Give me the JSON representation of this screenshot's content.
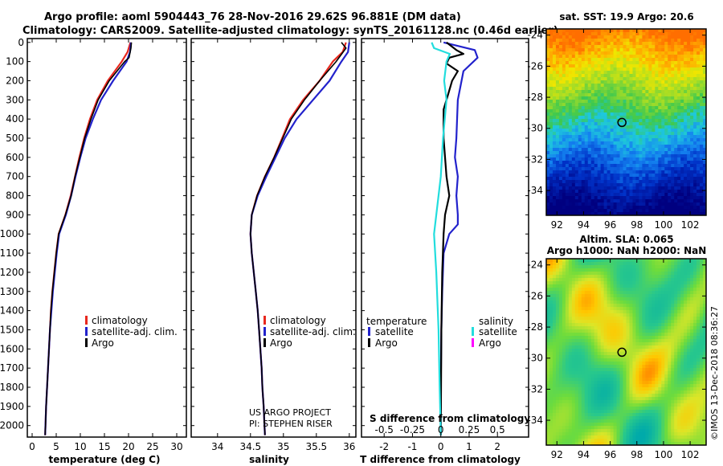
{
  "header": {
    "line1": "Argo profile: aoml 5904443_76 28-Nov-2016 29.62S 96.881E (DM data)",
    "line2": "Climatology: CARS2009. Satellite-adjusted climatology: synTS_20161128.nc (0.46d earlier)"
  },
  "colors": {
    "climatology": "#e8281e",
    "satellite": "#2222cc",
    "argo": "#000000",
    "sat_sal": "#22dddd",
    "argo_sal": "#ff00ff"
  },
  "depth_ticks": [
    0,
    100,
    200,
    300,
    400,
    500,
    600,
    700,
    800,
    900,
    1000,
    1100,
    1200,
    1300,
    1400,
    1500,
    1600,
    1700,
    1800,
    1900,
    2000
  ],
  "chart_data": [
    {
      "type": "line",
      "xlabel": "temperature (deg C)",
      "xlim": [
        -1,
        32
      ],
      "ylim": [
        2060,
        -20
      ],
      "xticks": [
        0,
        5,
        10,
        15,
        20,
        25,
        30
      ],
      "legend": [
        "climatology",
        "satellite-adj. clim.",
        "Argo"
      ],
      "series": [
        {
          "name": "climatology",
          "points": [
            [
              20.4,
              0
            ],
            [
              19.8,
              50
            ],
            [
              18.6,
              100
            ],
            [
              15.7,
              200
            ],
            [
              13.5,
              300
            ],
            [
              12.0,
              400
            ],
            [
              10.8,
              500
            ],
            [
              9.8,
              600
            ],
            [
              8.9,
              700
            ],
            [
              8.0,
              800
            ],
            [
              6.9,
              900
            ],
            [
              5.5,
              1000
            ],
            [
              5.0,
              1100
            ],
            [
              4.6,
              1200
            ],
            [
              4.2,
              1300
            ],
            [
              3.9,
              1400
            ],
            [
              3.7,
              1500
            ],
            [
              3.5,
              1600
            ],
            [
              3.3,
              1700
            ],
            [
              3.1,
              1800
            ],
            [
              2.9,
              1900
            ],
            [
              2.7,
              2050
            ]
          ]
        },
        {
          "name": "satellite-adj. clim.",
          "points": [
            [
              20.5,
              0
            ],
            [
              20.3,
              50
            ],
            [
              19.6,
              100
            ],
            [
              16.8,
              200
            ],
            [
              14.3,
              300
            ],
            [
              12.6,
              400
            ],
            [
              11.1,
              500
            ],
            [
              10.0,
              600
            ],
            [
              9.0,
              700
            ],
            [
              8.1,
              800
            ],
            [
              7.0,
              900
            ],
            [
              5.6,
              1000
            ],
            [
              5.1,
              1100
            ],
            [
              4.7,
              1200
            ],
            [
              4.3,
              1300
            ],
            [
              4.0,
              1400
            ],
            [
              3.7,
              1500
            ],
            [
              3.5,
              1600
            ],
            [
              3.3,
              1700
            ],
            [
              3.1,
              1800
            ],
            [
              2.9,
              1900
            ],
            [
              2.7,
              2050
            ]
          ]
        },
        {
          "name": "Argo",
          "points": [
            [
              20.6,
              0
            ],
            [
              20.5,
              30
            ],
            [
              20.1,
              80
            ],
            [
              19.2,
              100
            ],
            [
              16.0,
              200
            ],
            [
              13.7,
              300
            ],
            [
              12.2,
              400
            ],
            [
              10.9,
              500
            ],
            [
              9.9,
              600
            ],
            [
              8.9,
              700
            ],
            [
              8.1,
              800
            ],
            [
              6.9,
              900
            ],
            [
              5.5,
              1000
            ],
            [
              5.0,
              1100
            ],
            [
              4.6,
              1200
            ],
            [
              4.2,
              1300
            ],
            [
              3.9,
              1400
            ],
            [
              3.7,
              1500
            ],
            [
              3.5,
              1600
            ],
            [
              3.3,
              1700
            ],
            [
              3.1,
              1800
            ],
            [
              2.9,
              1900
            ],
            [
              2.7,
              2050
            ]
          ]
        }
      ]
    },
    {
      "type": "line",
      "xlabel": "salinity",
      "xlim": [
        33.6,
        36.1
      ],
      "ylim": [
        2060,
        -20
      ],
      "xticks": [
        34,
        34.5,
        35,
        35.5,
        36
      ],
      "legend": [
        "climatology",
        "satellite-adj. clim.",
        "Argo"
      ],
      "series": [
        {
          "name": "climatology",
          "points": [
            [
              35.95,
              0
            ],
            [
              35.9,
              50
            ],
            [
              35.75,
              100
            ],
            [
              35.55,
              200
            ],
            [
              35.3,
              300
            ],
            [
              35.1,
              400
            ],
            [
              34.98,
              500
            ],
            [
              34.86,
              600
            ],
            [
              34.72,
              700
            ],
            [
              34.6,
              800
            ],
            [
              34.52,
              900
            ],
            [
              34.5,
              1000
            ],
            [
              34.52,
              1100
            ],
            [
              34.55,
              1200
            ],
            [
              34.58,
              1300
            ],
            [
              34.61,
              1400
            ],
            [
              34.63,
              1500
            ],
            [
              34.65,
              1600
            ],
            [
              34.67,
              1700
            ],
            [
              34.68,
              1800
            ],
            [
              34.7,
              1900
            ],
            [
              34.72,
              2050
            ]
          ]
        },
        {
          "name": "satellite-adj. clim.",
          "points": [
            [
              36.0,
              0
            ],
            [
              35.98,
              50
            ],
            [
              35.88,
              100
            ],
            [
              35.7,
              200
            ],
            [
              35.45,
              300
            ],
            [
              35.2,
              400
            ],
            [
              35.02,
              500
            ],
            [
              34.88,
              600
            ],
            [
              34.74,
              700
            ],
            [
              34.61,
              800
            ],
            [
              34.52,
              900
            ],
            [
              34.5,
              1000
            ],
            [
              34.52,
              1100
            ],
            [
              34.55,
              1200
            ],
            [
              34.58,
              1300
            ],
            [
              34.61,
              1400
            ],
            [
              34.63,
              1500
            ],
            [
              34.65,
              1600
            ],
            [
              34.67,
              1700
            ],
            [
              34.68,
              1800
            ],
            [
              34.7,
              1900
            ],
            [
              34.72,
              2050
            ]
          ]
        },
        {
          "name": "Argo",
          "points": [
            [
              35.88,
              0
            ],
            [
              35.95,
              30
            ],
            [
              35.8,
              100
            ],
            [
              35.55,
              200
            ],
            [
              35.32,
              300
            ],
            [
              35.12,
              400
            ],
            [
              34.99,
              500
            ],
            [
              34.86,
              600
            ],
            [
              34.72,
              700
            ],
            [
              34.6,
              800
            ],
            [
              34.52,
              900
            ],
            [
              34.5,
              1000
            ],
            [
              34.52,
              1100
            ],
            [
              34.55,
              1200
            ],
            [
              34.58,
              1300
            ],
            [
              34.61,
              1400
            ],
            [
              34.63,
              1500
            ],
            [
              34.65,
              1600
            ],
            [
              34.67,
              1700
            ],
            [
              34.68,
              1800
            ],
            [
              34.7,
              1900
            ],
            [
              34.72,
              2050
            ]
          ]
        }
      ],
      "annotation": [
        "US ARGO PROJECT",
        "PI: STEPHEN RISER"
      ]
    },
    {
      "type": "line",
      "xlabel": "T difference from climatology",
      "xlabel2": "S difference from climatology",
      "xlim": [
        -2.8,
        3.1
      ],
      "ylim": [
        2060,
        -20
      ],
      "xticks": [
        -2,
        -1,
        0,
        1,
        2
      ],
      "xticks2": [
        {
          "v": -0.5,
          "l": "-0.5"
        },
        {
          "v": -0.25,
          "l": "-0.25"
        },
        {
          "v": 0,
          "l": "0"
        },
        {
          "v": 0.25,
          "l": "0.25"
        },
        {
          "v": 0.5,
          "l": "0.5"
        }
      ],
      "s_scale": 4,
      "legend_t_title": "temperature",
      "legend_s_title": "salinity",
      "legend_t": [
        "satellite",
        "Argo"
      ],
      "legend_s": [
        "satellite",
        "Argo"
      ],
      "series": [
        {
          "name": "T satellite",
          "points": [
            [
              0.1,
              0
            ],
            [
              1.2,
              40
            ],
            [
              1.3,
              80
            ],
            [
              0.8,
              150
            ],
            [
              0.6,
              300
            ],
            [
              0.55,
              500
            ],
            [
              0.5,
              600
            ],
            [
              0.6,
              700
            ],
            [
              0.55,
              800
            ],
            [
              0.6,
              900
            ],
            [
              0.6,
              950
            ],
            [
              0.3,
              1000
            ],
            [
              0.1,
              1100
            ],
            [
              0.05,
              1300
            ],
            [
              0.02,
              1500
            ],
            [
              0.0,
              1800
            ],
            [
              0.0,
              2050
            ]
          ]
        },
        {
          "name": "T Argo",
          "points": [
            [
              0.2,
              0
            ],
            [
              0.55,
              40
            ],
            [
              0.8,
              60
            ],
            [
              0.3,
              80
            ],
            [
              0.2,
              110
            ],
            [
              0.6,
              150
            ],
            [
              0.4,
              200
            ],
            [
              0.3,
              250
            ],
            [
              0.2,
              300
            ],
            [
              0.1,
              350
            ],
            [
              0.1,
              500
            ],
            [
              0.2,
              700
            ],
            [
              0.3,
              800
            ],
            [
              0.15,
              900
            ],
            [
              0.1,
              1000
            ],
            [
              0.05,
              1200
            ],
            [
              0.02,
              1500
            ],
            [
              0.0,
              2050
            ]
          ]
        },
        {
          "name": "S satellite",
          "points": [
            [
              -0.08,
              0
            ],
            [
              -0.06,
              30
            ],
            [
              0.08,
              60
            ],
            [
              0.05,
              100
            ],
            [
              0.03,
              200
            ],
            [
              0.05,
              300
            ],
            [
              0.02,
              500
            ],
            [
              0.0,
              700
            ],
            [
              -0.04,
              900
            ],
            [
              -0.06,
              1000
            ],
            [
              -0.04,
              1200
            ],
            [
              -0.02,
              1500
            ],
            [
              -0.01,
              1800
            ],
            [
              0.0,
              2050
            ]
          ]
        },
        {
          "name": "S Argo",
          "points": []
        }
      ]
    },
    {
      "type": "heatmap",
      "title": "sat. SST: 19.9 Argo: 20.6",
      "xticks": [
        92,
        94,
        96,
        98,
        100,
        102
      ],
      "yticks": [
        -24,
        -26,
        -28,
        -30,
        -32,
        -34
      ],
      "xlim": [
        91.2,
        103.2
      ],
      "ylim": [
        -35.6,
        -23.6
      ],
      "marker": [
        96.88,
        -29.62
      ]
    },
    {
      "type": "heatmap",
      "title": "Altim. SLA: 0.065",
      "subtitle": "Argo h1000: NaN h2000: NaN",
      "xticks": [
        92,
        94,
        96,
        98,
        100,
        102
      ],
      "yticks": [
        -24,
        -26,
        -28,
        -30,
        -32,
        -34
      ],
      "xlim": [
        91.2,
        103.2
      ],
      "ylim": [
        -35.6,
        -23.6
      ],
      "marker": [
        96.88,
        -29.62
      ]
    }
  ],
  "credit": "©IMOS 13-Dec-2018 08:36:27"
}
